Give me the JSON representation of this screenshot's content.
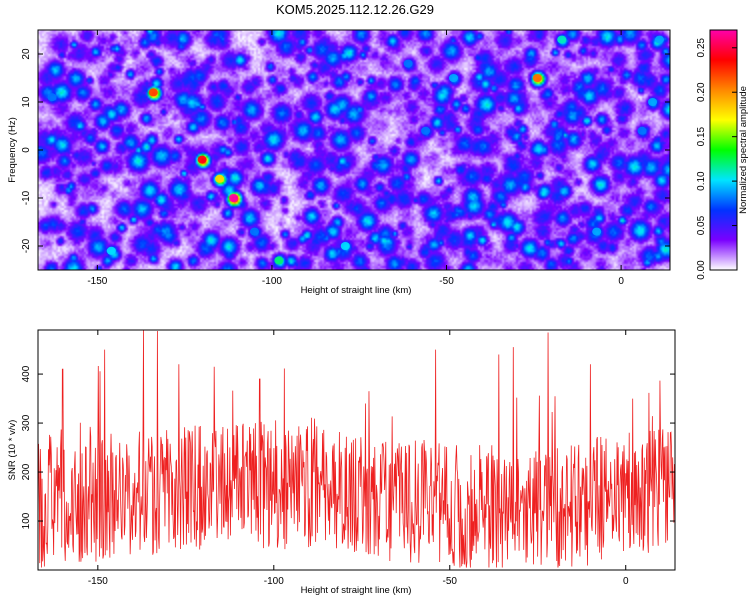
{
  "figure": {
    "title": "KOM5.2025.112.12.26.G29"
  },
  "chart_data": [
    {
      "type": "heatmap",
      "xlabel": "Height of straight line (km)",
      "ylabel": "Frequency (Hz)",
      "xlim": [
        -167,
        14
      ],
      "ylim": [
        -25,
        25
      ],
      "xticks": [
        -150,
        -100,
        -50,
        0
      ],
      "yticks": [
        -20,
        -10,
        0,
        10,
        20
      ],
      "colorbar": {
        "label": "Normalized spectral amplitude",
        "range": [
          0,
          0.27
        ],
        "ticks": [
          0.0,
          0.05,
          0.1,
          0.15,
          0.2,
          0.25
        ],
        "tick_labels": [
          "0.00",
          "0.05",
          "0.10",
          "0.15",
          "0.20",
          "0.25"
        ],
        "colormap": [
          "#ffffff",
          "#7a00ff",
          "#0033ff",
          "#00e5ff",
          "#00ff00",
          "#ffff00",
          "#ff8800",
          "#ff0000",
          "#ff00aa"
        ]
      },
      "background_level": 0.02,
      "hotspots": [
        {
          "x": -120,
          "y": -2,
          "value": 0.24
        },
        {
          "x": -115,
          "y": -6,
          "value": 0.18
        },
        {
          "x": -111,
          "y": -10,
          "value": 0.27
        },
        {
          "x": -105,
          "y": -17,
          "value": 0.08
        },
        {
          "x": -98,
          "y": -23,
          "value": 0.12
        },
        {
          "x": -134,
          "y": 12,
          "value": 0.22
        },
        {
          "x": -24,
          "y": 15,
          "value": 0.21
        },
        {
          "x": -146,
          "y": -21,
          "value": 0.1
        },
        {
          "x": -163,
          "y": 11,
          "value": 0.08
        },
        {
          "x": 9,
          "y": 10,
          "value": 0.09
        },
        {
          "x": 6,
          "y": 4,
          "value": 0.08
        },
        {
          "x": -7,
          "y": -17,
          "value": 0.09
        },
        {
          "x": -56,
          "y": 4,
          "value": 0.08
        },
        {
          "x": -48,
          "y": 15,
          "value": 0.09
        },
        {
          "x": -79,
          "y": -20,
          "value": 0.1
        },
        {
          "x": -17,
          "y": 23,
          "value": 0.11
        },
        {
          "x": 11,
          "y": 23,
          "value": 0.09
        },
        {
          "x": -61,
          "y": 18,
          "value": 0.08
        }
      ],
      "grid": false,
      "legend": "none"
    },
    {
      "type": "line",
      "xlabel": "Height of straight line (km)",
      "ylabel": "SNR (10 * v/v)",
      "xlim": [
        -167,
        14
      ],
      "ylim": [
        0,
        490
      ],
      "xticks": [
        -150,
        -100,
        -50,
        0
      ],
      "yticks": [
        100,
        200,
        300,
        400
      ],
      "series": [
        {
          "color": "#ee2020",
          "summary": {
            "mean": 150,
            "min": 5,
            "max": 490
          },
          "peaks": [
            {
              "x": -137,
              "y": 490
            },
            {
              "x": -133,
              "y": 488
            },
            {
              "x": -148,
              "y": 450
            },
            {
              "x": -127,
              "y": 420
            },
            {
              "x": -117,
              "y": 415
            },
            {
              "x": -54,
              "y": 450
            },
            {
              "x": -36,
              "y": 440
            },
            {
              "x": -32,
              "y": 455
            },
            {
              "x": -22,
              "y": 485
            },
            {
              "x": -160,
              "y": 410
            },
            {
              "x": -104,
              "y": 390
            },
            {
              "x": -74,
              "y": 340
            },
            {
              "x": -10,
              "y": 420
            },
            {
              "x": 2,
              "y": 350
            }
          ]
        }
      ],
      "grid": false,
      "legend": "none"
    }
  ]
}
